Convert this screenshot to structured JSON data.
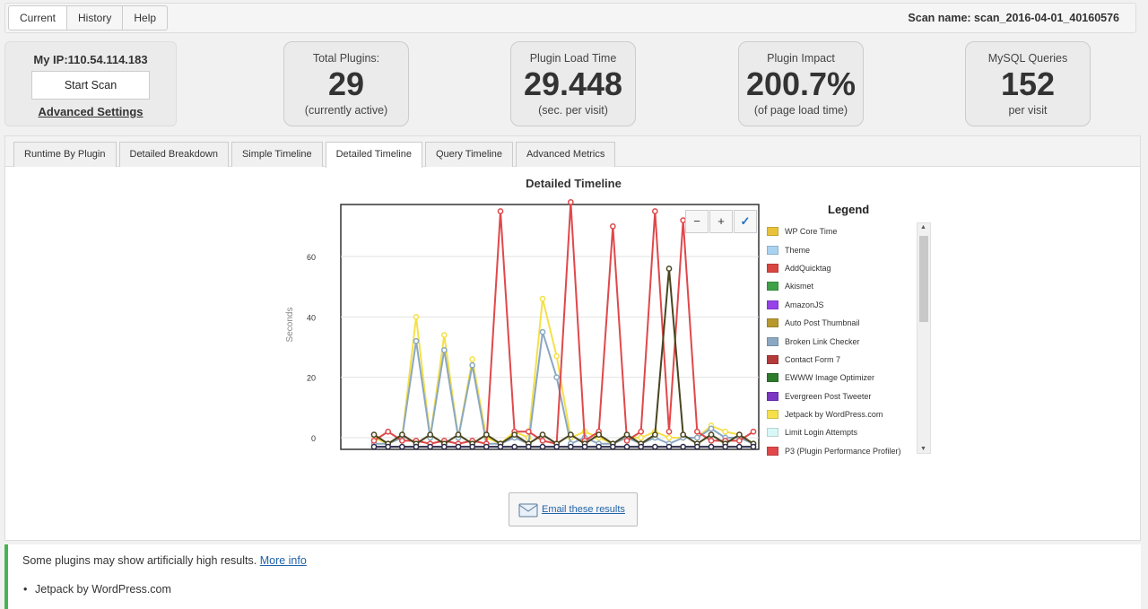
{
  "top_tabs": [
    {
      "label": "Current",
      "active": true
    },
    {
      "label": "History",
      "active": false
    },
    {
      "label": "Help",
      "active": false
    }
  ],
  "scan_name": "Scan name: scan_2016-04-01_40160576",
  "ip_box": {
    "ip_label": "My IP:110.54.114.183",
    "start_button": "Start Scan",
    "advanced_link": "Advanced Settings"
  },
  "stats": [
    {
      "title": "Total Plugins:",
      "value": "29",
      "sub": "(currently active)"
    },
    {
      "title": "Plugin Load Time",
      "value": "29.448",
      "sub": "(sec. per visit)"
    },
    {
      "title": "Plugin Impact",
      "value": "200.7%",
      "sub": "(of page load time)"
    },
    {
      "title": "MySQL Queries",
      "value": "152",
      "sub": "per visit"
    }
  ],
  "panel_tabs": [
    {
      "label": "Runtime By Plugin",
      "active": false
    },
    {
      "label": "Detailed Breakdown",
      "active": false
    },
    {
      "label": "Simple Timeline",
      "active": false
    },
    {
      "label": "Detailed Timeline",
      "active": true
    },
    {
      "label": "Query Timeline",
      "active": false
    },
    {
      "label": "Advanced Metrics",
      "active": false
    }
  ],
  "zoom": {
    "minus": "−",
    "plus": "+",
    "check": "✓"
  },
  "legend": {
    "title": "Legend",
    "items": [
      {
        "label": "WP Core Time",
        "color": "#e8c23a"
      },
      {
        "label": "Theme",
        "color": "#a9d3f0"
      },
      {
        "label": "AddQuicktag",
        "color": "#d9463f"
      },
      {
        "label": "Akismet",
        "color": "#3fa047"
      },
      {
        "label": "AmazonJS",
        "color": "#9642e8"
      },
      {
        "label": "Auto Post Thumbnail",
        "color": "#b8982e"
      },
      {
        "label": "Broken Link Checker",
        "color": "#8aa8c2"
      },
      {
        "label": "Contact Form 7",
        "color": "#b43a3a"
      },
      {
        "label": "EWWW Image Optimizer",
        "color": "#2c7a2c"
      },
      {
        "label": "Evergreen Post Tweeter",
        "color": "#7b36c2"
      },
      {
        "label": "Jetpack by WordPress.com",
        "color": "#f5e04a"
      },
      {
        "label": "Limit Login Attempts",
        "color": "#d8f8f8"
      },
      {
        "label": "P3 (Plugin Performance Profiler)",
        "color": "#e0484a"
      }
    ]
  },
  "chart_data": {
    "type": "line",
    "title": "Detailed Timeline",
    "ylabel": "Seconds",
    "xlabel": "",
    "ylim": [
      -3,
      78
    ],
    "yticks": [
      0,
      20,
      40,
      60
    ],
    "grid": true,
    "x": [
      0,
      1,
      2,
      3,
      4,
      5,
      6,
      7,
      8,
      9,
      10,
      11,
      12,
      13,
      14,
      15,
      16,
      17,
      18,
      19,
      20,
      21,
      22,
      23,
      24,
      25,
      26,
      27
    ],
    "series": [
      {
        "color": "#f5e04a",
        "values": [
          0,
          -2,
          0,
          40,
          0,
          34,
          0,
          26,
          0,
          -2,
          2,
          0,
          46,
          27,
          0,
          2,
          0,
          -2,
          0,
          0,
          2,
          0,
          0,
          0,
          4,
          2,
          1,
          -2
        ]
      },
      {
        "color": "#8aa8c2",
        "values": [
          -2,
          -2,
          0,
          32,
          0,
          29,
          0,
          24,
          -2,
          -2,
          0,
          -2,
          35,
          20,
          -2,
          0,
          -2,
          -2,
          0,
          -2,
          0,
          -2,
          0,
          0,
          3,
          0,
          0,
          -2
        ]
      },
      {
        "color": "#e0484a",
        "values": [
          -1,
          2,
          -1,
          -1,
          -2,
          -1,
          -2,
          -1,
          -2,
          75,
          2,
          2,
          -1,
          -2,
          78,
          -1,
          2,
          70,
          -1,
          2,
          75,
          2,
          72,
          2,
          -1,
          -1,
          -1,
          2
        ]
      },
      {
        "color": "#4a4520",
        "values": [
          1,
          -2,
          1,
          -2,
          1,
          -2,
          1,
          -2,
          1,
          -2,
          1,
          -2,
          1,
          -2,
          1,
          -2,
          1,
          -2,
          1,
          -2,
          1,
          56,
          1,
          -2,
          1,
          -2,
          1,
          -2
        ]
      },
      {
        "color": "#2b2b4a",
        "values": [
          -3,
          -3,
          -3,
          -3,
          -3,
          -3,
          -3,
          -3,
          -3,
          -3,
          -3,
          -3,
          -3,
          -3,
          -3,
          -3,
          -3,
          -3,
          -3,
          -3,
          -3,
          -3,
          -3,
          -3,
          -3,
          -3,
          -3,
          -3
        ]
      }
    ]
  },
  "email_button": "Email these results",
  "notice": {
    "text": "Some plugins may show artificially high results.",
    "link": "More info",
    "items": [
      "Jetpack by WordPress.com"
    ]
  }
}
